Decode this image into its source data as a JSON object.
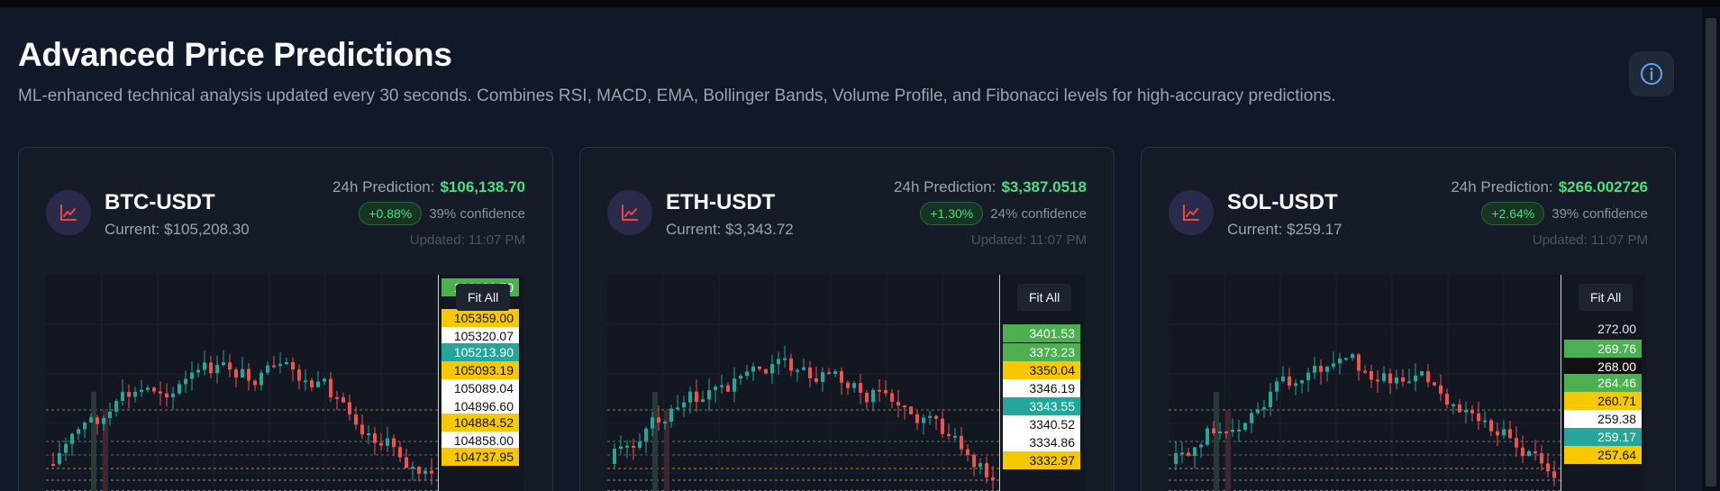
{
  "page": {
    "title": "Advanced Price Predictions",
    "description": "ML-enhanced technical analysis updated every 30 seconds. Combines RSI, MACD, EMA, Bollinger Bands, Volume Profile, and Fibonacci levels for high-accuracy predictions.",
    "info_icon": "info-icon"
  },
  "colors": {
    "up": "#26a69a",
    "down": "#ef5350",
    "prediction": "#4ade80",
    "accent_icon": "#ef4444"
  },
  "chart_controls": {
    "fit_all": "Fit All"
  },
  "cards": [
    {
      "pair": "BTC-USDT",
      "current": "Current: $105,208.30",
      "prediction_label": "24h Prediction:",
      "prediction_value": "$106,138.70",
      "change": "+0.88%",
      "confidence": "39% confidence",
      "updated": "Updated: 11:07 PM",
      "icon": "trending-chart-icon",
      "price_labels": [
        {
          "text": "106138.70",
          "color": "green"
        },
        {
          "text": "105359.00",
          "color": "yellow"
        },
        {
          "text": "105320.07",
          "color": "white"
        },
        {
          "text": "105213.90",
          "color": "teal"
        },
        {
          "text": "105093.19",
          "color": "yellow"
        },
        {
          "text": "105089.04",
          "color": "white"
        },
        {
          "text": "104896.60",
          "color": "white"
        },
        {
          "text": "104884.52",
          "color": "yellow"
        },
        {
          "text": "104858.00",
          "color": "white"
        },
        {
          "text": "104737.95",
          "color": "yellow"
        }
      ]
    },
    {
      "pair": "ETH-USDT",
      "current": "Current: $3,343.72",
      "prediction_label": "24h Prediction:",
      "prediction_value": "$3,387.0518",
      "change": "+1.30%",
      "confidence": "24% confidence",
      "updated": "Updated: 11:07 PM",
      "icon": "trending-chart-icon",
      "price_labels": [
        {
          "text": "3401.53",
          "color": "green"
        },
        {
          "text": "3373.23",
          "color": "green"
        },
        {
          "text": "3350.04",
          "color": "yellow"
        },
        {
          "text": "3346.19",
          "color": "white"
        },
        {
          "text": "3343.55",
          "color": "teal"
        },
        {
          "text": "3340.52",
          "color": "white"
        },
        {
          "text": "3334.86",
          "color": "white"
        },
        {
          "text": "3332.97",
          "color": "yellow"
        }
      ]
    },
    {
      "pair": "SOL-USDT",
      "current": "Current: $259.17",
      "prediction_label": "24h Prediction:",
      "prediction_value": "$266.002726",
      "change": "+2.64%",
      "confidence": "39% confidence",
      "updated": "Updated: 11:07 PM",
      "icon": "trending-chart-icon",
      "price_labels": [
        {
          "text": "272.00",
          "color": "plain"
        },
        {
          "text": "269.76",
          "color": "green"
        },
        {
          "text": "268.00",
          "color": "black"
        },
        {
          "text": "264.46",
          "color": "green"
        },
        {
          "text": "260.71",
          "color": "yellow"
        },
        {
          "text": "259.38",
          "color": "white"
        },
        {
          "text": "259.17",
          "color": "teal"
        },
        {
          "text": "257.64",
          "color": "yellow"
        }
      ]
    }
  ]
}
